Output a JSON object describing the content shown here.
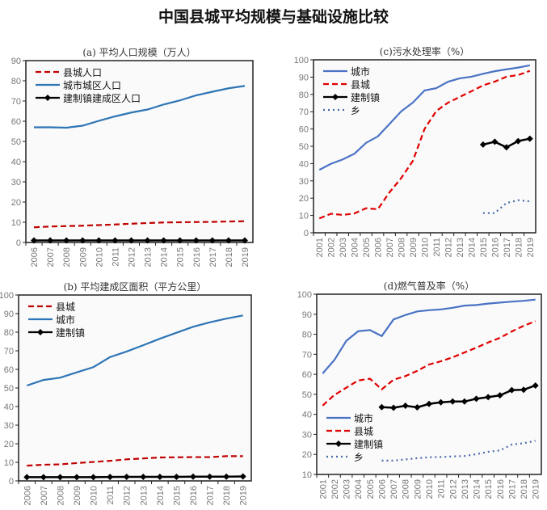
{
  "title": "中国县城平均规模与基础设施比较",
  "colors": {
    "city": "#2e75b6",
    "county": "#c00000",
    "town": "#000000",
    "township": "#4a6aa8"
  },
  "chart_data": [
    {
      "id": "a",
      "type": "line",
      "title": "(a) 平均人口规模（万人）",
      "x": [
        "2006",
        "2007",
        "2008",
        "2009",
        "2010",
        "2011",
        "2012",
        "2013",
        "2014",
        "2015",
        "2016",
        "2017",
        "2018",
        "2019"
      ],
      "ylim": [
        0,
        90
      ],
      "yticks": [
        0,
        10,
        20,
        30,
        40,
        50,
        60,
        70,
        80,
        90
      ],
      "legend": "top-left",
      "series": [
        {
          "name": "县城人口",
          "style": "dashed",
          "color": "#c00000",
          "values": [
            7.5,
            7.9,
            8.1,
            8.3,
            8.6,
            8.9,
            9.3,
            9.6,
            9.9,
            10.0,
            10.1,
            10.2,
            10.4,
            10.5
          ]
        },
        {
          "name": "城市城区人口",
          "style": "solid",
          "color": "#2e75b6",
          "values": [
            57.0,
            57.0,
            56.8,
            57.8,
            60.2,
            62.4,
            64.3,
            65.8,
            68.3,
            70.3,
            72.8,
            74.6,
            76.3,
            77.5
          ]
        },
        {
          "name": "建制镇建成区人口",
          "style": "marker",
          "color": "#000000",
          "values": [
            1.0,
            1.0,
            1.0,
            1.0,
            1.0,
            1.0,
            1.0,
            1.0,
            1.0,
            1.0,
            1.0,
            1.0,
            1.0,
            1.0
          ]
        }
      ]
    },
    {
      "id": "c",
      "type": "line",
      "title": "(c)污水处理率（%）",
      "x": [
        "2001",
        "2002",
        "2003",
        "2004",
        "2005",
        "2006",
        "2007",
        "2008",
        "2009",
        "2010",
        "2011",
        "2012",
        "2013",
        "2014",
        "2015",
        "2016",
        "2017",
        "2018",
        "2019"
      ],
      "ylim": [
        0,
        100
      ],
      "yticks": [
        0,
        10,
        20,
        30,
        40,
        50,
        60,
        70,
        80,
        90,
        100
      ],
      "legend": "top-left",
      "series": [
        {
          "name": "城市",
          "style": "solid",
          "color": "#4a72c4",
          "values": [
            36.4,
            39.9,
            42.4,
            45.7,
            52.0,
            55.7,
            62.9,
            70.2,
            75.3,
            82.3,
            83.6,
            87.3,
            89.3,
            90.2,
            91.9,
            93.4,
            94.5,
            95.5,
            96.8
          ]
        },
        {
          "name": "县城",
          "style": "dashed",
          "color": "#e00000",
          "values": [
            8.3,
            11.0,
            10.3,
            11.2,
            14.2,
            13.6,
            23.4,
            31.6,
            41.6,
            60.1,
            70.4,
            75.2,
            78.5,
            81.8,
            85.2,
            87.4,
            90.2,
            91.2,
            93.6
          ]
        },
        {
          "name": "建制镇",
          "style": "marker",
          "color": "#000000",
          "values": [
            null,
            null,
            null,
            null,
            null,
            null,
            null,
            null,
            null,
            null,
            null,
            null,
            null,
            null,
            51.0,
            52.6,
            49.4,
            53.0,
            54.4
          ]
        },
        {
          "name": "乡",
          "style": "dotted",
          "color": "#4a6aa8",
          "values": [
            null,
            null,
            null,
            null,
            null,
            null,
            null,
            null,
            null,
            null,
            null,
            null,
            null,
            null,
            11.4,
            11.4,
            17.2,
            18.8,
            18.2
          ]
        }
      ]
    },
    {
      "id": "b",
      "type": "line",
      "title": "(b) 平均建成区面积（平方公里）",
      "x": [
        "2006",
        "2007",
        "2008",
        "2009",
        "2010",
        "2011",
        "2012",
        "2013",
        "2014",
        "2015",
        "2016",
        "2017",
        "2018",
        "2019"
      ],
      "ylim": [
        0,
        100
      ],
      "yticks": [
        0,
        10,
        20,
        30,
        40,
        50,
        60,
        70,
        80,
        90,
        100
      ],
      "legend": "top-left",
      "series": [
        {
          "name": "县城",
          "style": "dashed",
          "color": "#c00000",
          "values": [
            8.2,
            8.7,
            8.9,
            9.6,
            10.2,
            10.8,
            11.6,
            12.1,
            12.6,
            12.7,
            12.8,
            12.8,
            13.3,
            13.3
          ]
        },
        {
          "name": "城市",
          "style": "solid",
          "color": "#2e75b6",
          "values": [
            51.3,
            54.3,
            55.5,
            58.4,
            61.2,
            66.6,
            69.6,
            73.0,
            76.5,
            79.7,
            82.9,
            85.3,
            87.3,
            89.0
          ]
        },
        {
          "name": "建制镇",
          "style": "marker",
          "color": "#000000",
          "values": [
            2.0,
            2.0,
            2.0,
            2.0,
            2.0,
            2.1,
            2.2,
            2.2,
            2.2,
            2.2,
            2.3,
            2.3,
            2.3,
            2.4
          ]
        }
      ]
    },
    {
      "id": "d",
      "type": "line",
      "title": "(d)燃气普及率（%）",
      "x": [
        "2001",
        "2002",
        "2003",
        "2004",
        "2005",
        "2006",
        "2007",
        "2008",
        "2009",
        "2010",
        "2011",
        "2012",
        "2013",
        "2014",
        "2015",
        "2016",
        "2017",
        "2018",
        "2019"
      ],
      "ylim": [
        10,
        100
      ],
      "yticks": [
        10,
        20,
        30,
        40,
        50,
        60,
        70,
        80,
        90,
        100
      ],
      "legend": "bottom-left",
      "series": [
        {
          "name": "城市",
          "style": "solid",
          "color": "#4a72c4",
          "values": [
            60.4,
            67.2,
            76.7,
            81.5,
            82.1,
            79.1,
            87.4,
            89.6,
            91.4,
            92.0,
            92.4,
            93.2,
            94.3,
            94.6,
            95.3,
            95.8,
            96.3,
            96.7,
            97.3
          ]
        },
        {
          "name": "县城",
          "style": "dashed",
          "color": "#e00000",
          "values": [
            44.4,
            49.7,
            53.3,
            56.9,
            57.8,
            52.5,
            57.3,
            59.1,
            61.7,
            64.9,
            66.5,
            68.5,
            70.9,
            73.3,
            75.9,
            78.2,
            81.4,
            84.2,
            86.5
          ]
        },
        {
          "name": "建制镇",
          "style": "marker",
          "color": "#000000",
          "values": [
            null,
            null,
            null,
            null,
            null,
            43.6,
            43.3,
            44.3,
            43.5,
            45.2,
            46.0,
            46.4,
            46.4,
            47.8,
            48.6,
            49.5,
            52.1,
            52.3,
            54.4
          ]
        },
        {
          "name": "乡",
          "style": "dotted",
          "color": "#4a6aa8",
          "values": [
            null,
            null,
            null,
            null,
            null,
            16.9,
            16.9,
            17.5,
            18.1,
            18.6,
            18.7,
            19.0,
            19.2,
            20.1,
            21.3,
            22.0,
            24.9,
            25.6,
            26.8
          ]
        }
      ]
    }
  ]
}
